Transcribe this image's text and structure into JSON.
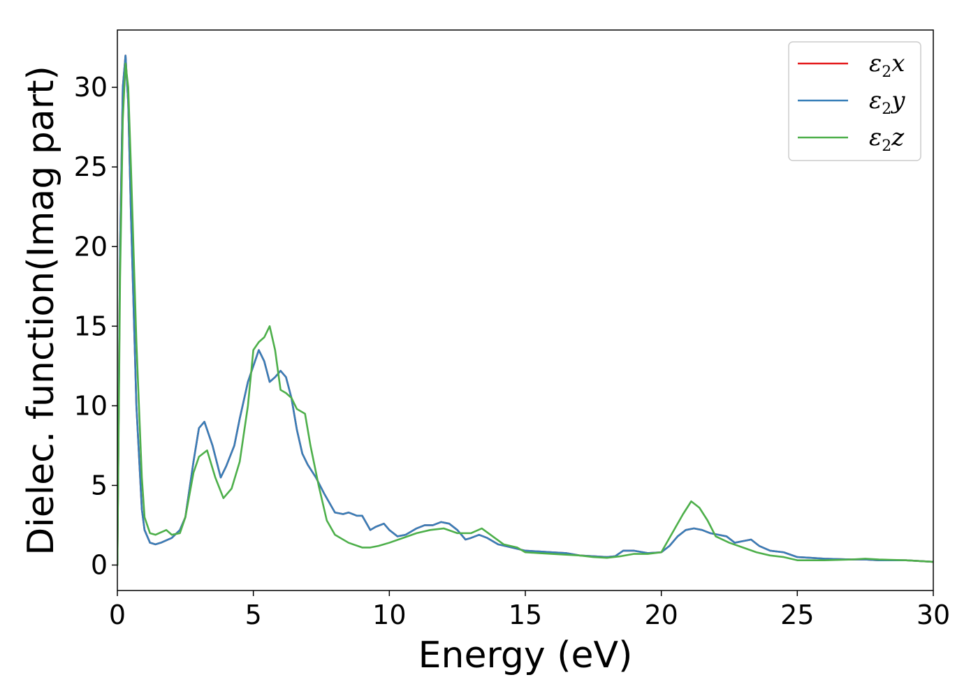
{
  "chart_data": {
    "type": "line",
    "title": "",
    "xlabel": "Energy (eV)",
    "ylabel": "Dielec. function(Imag part)",
    "xlim": [
      0,
      30
    ],
    "ylim": [
      -1.6,
      33.6
    ],
    "xticks": [
      0,
      5,
      10,
      15,
      20,
      25,
      30
    ],
    "yticks": [
      0,
      5,
      10,
      15,
      20,
      25,
      30
    ],
    "grid": false,
    "legend_position": "top-right",
    "colors": {
      "x": "#e41a1c",
      "y": "#377eb8",
      "z": "#4daf4a"
    },
    "legend": [
      {
        "symbol": "ε",
        "sub": "2",
        "axis": "x",
        "color": "#e41a1c"
      },
      {
        "symbol": "ε",
        "sub": "2",
        "axis": "y",
        "color": "#377eb8"
      },
      {
        "symbol": "ε",
        "sub": "2",
        "axis": "z",
        "color": "#4daf4a"
      }
    ],
    "series": [
      {
        "color": "#e41a1c",
        "x": [
          0,
          0.1,
          0.2,
          0.3,
          0.4,
          0.5,
          0.7,
          0.9,
          1.0,
          1.2,
          1.4,
          1.6,
          2.0,
          2.3,
          2.5,
          2.8,
          3.0,
          3.2,
          3.5,
          3.8,
          4.0,
          4.3,
          4.5,
          4.8,
          5.0,
          5.2,
          5.4,
          5.6,
          5.8,
          6.0,
          6.2,
          6.4,
          6.6,
          6.8,
          7.0,
          7.3,
          7.6,
          8.0,
          8.3,
          8.5,
          8.8,
          9.0,
          9.3,
          9.5,
          9.8,
          10.0,
          10.3,
          10.6,
          11.0,
          11.3,
          11.6,
          11.9,
          12.2,
          12.5,
          12.8,
          13.0,
          13.3,
          13.6,
          14.0,
          14.5,
          15.0,
          15.5,
          16.0,
          16.5,
          17.0,
          17.5,
          18.0,
          18.3,
          18.6,
          19.0,
          19.5,
          20.0,
          20.3,
          20.6,
          20.9,
          21.2,
          21.5,
          21.8,
          22.1,
          22.4,
          22.7,
          23.0,
          23.3,
          23.6,
          24.0,
          24.5,
          25.0,
          25.5,
          26.0,
          27.0,
          27.5,
          28.0,
          29.0,
          30.0
        ],
        "y": [
          0,
          20,
          30,
          32,
          29,
          22,
          10,
          3.5,
          2.2,
          1.4,
          1.3,
          1.4,
          1.7,
          2.2,
          3.0,
          6.5,
          8.6,
          9.0,
          7.5,
          5.5,
          6.2,
          7.5,
          9.2,
          11.5,
          12.5,
          13.5,
          12.8,
          11.5,
          11.8,
          12.2,
          11.8,
          10.5,
          8.5,
          7.0,
          6.3,
          5.5,
          4.5,
          3.3,
          3.2,
          3.3,
          3.1,
          3.1,
          2.2,
          2.4,
          2.6,
          2.2,
          1.8,
          1.9,
          2.3,
          2.5,
          2.5,
          2.7,
          2.6,
          2.2,
          1.6,
          1.7,
          1.9,
          1.7,
          1.3,
          1.1,
          0.9,
          0.85,
          0.8,
          0.75,
          0.6,
          0.55,
          0.5,
          0.55,
          0.9,
          0.9,
          0.75,
          0.8,
          1.2,
          1.8,
          2.2,
          2.3,
          2.2,
          2.0,
          1.9,
          1.8,
          1.4,
          1.5,
          1.6,
          1.2,
          0.9,
          0.8,
          0.5,
          0.45,
          0.4,
          0.35,
          0.35,
          0.3,
          0.3,
          0.2
        ]
      },
      {
        "color": "#377eb8",
        "x": [
          0,
          0.1,
          0.2,
          0.3,
          0.4,
          0.5,
          0.7,
          0.9,
          1.0,
          1.2,
          1.4,
          1.6,
          2.0,
          2.3,
          2.5,
          2.8,
          3.0,
          3.2,
          3.5,
          3.8,
          4.0,
          4.3,
          4.5,
          4.8,
          5.0,
          5.2,
          5.4,
          5.6,
          5.8,
          6.0,
          6.2,
          6.4,
          6.6,
          6.8,
          7.0,
          7.3,
          7.6,
          8.0,
          8.3,
          8.5,
          8.8,
          9.0,
          9.3,
          9.5,
          9.8,
          10.0,
          10.3,
          10.6,
          11.0,
          11.3,
          11.6,
          11.9,
          12.2,
          12.5,
          12.8,
          13.0,
          13.3,
          13.6,
          14.0,
          14.5,
          15.0,
          15.5,
          16.0,
          16.5,
          17.0,
          17.5,
          18.0,
          18.3,
          18.6,
          19.0,
          19.5,
          20.0,
          20.3,
          20.6,
          20.9,
          21.2,
          21.5,
          21.8,
          22.1,
          22.4,
          22.7,
          23.0,
          23.3,
          23.6,
          24.0,
          24.5,
          25.0,
          25.5,
          26.0,
          27.0,
          27.5,
          28.0,
          29.0,
          30.0
        ],
        "y": [
          0,
          20,
          30,
          32,
          29,
          22,
          10,
          3.5,
          2.2,
          1.4,
          1.3,
          1.4,
          1.7,
          2.2,
          3.0,
          6.5,
          8.6,
          9.0,
          7.5,
          5.5,
          6.2,
          7.5,
          9.2,
          11.5,
          12.5,
          13.5,
          12.8,
          11.5,
          11.8,
          12.2,
          11.8,
          10.5,
          8.5,
          7.0,
          6.3,
          5.5,
          4.5,
          3.3,
          3.2,
          3.3,
          3.1,
          3.1,
          2.2,
          2.4,
          2.6,
          2.2,
          1.8,
          1.9,
          2.3,
          2.5,
          2.5,
          2.7,
          2.6,
          2.2,
          1.6,
          1.7,
          1.9,
          1.7,
          1.3,
          1.1,
          0.9,
          0.85,
          0.8,
          0.75,
          0.6,
          0.55,
          0.5,
          0.55,
          0.9,
          0.9,
          0.75,
          0.8,
          1.2,
          1.8,
          2.2,
          2.3,
          2.2,
          2.0,
          1.9,
          1.8,
          1.4,
          1.5,
          1.6,
          1.2,
          0.9,
          0.8,
          0.5,
          0.45,
          0.4,
          0.35,
          0.35,
          0.3,
          0.3,
          0.2
        ]
      },
      {
        "color": "#4daf4a",
        "x": [
          0,
          0.1,
          0.2,
          0.3,
          0.4,
          0.5,
          0.7,
          0.9,
          1.0,
          1.2,
          1.4,
          1.8,
          2.0,
          2.3,
          2.5,
          2.8,
          3.0,
          3.3,
          3.6,
          3.9,
          4.2,
          4.5,
          4.8,
          5.0,
          5.2,
          5.4,
          5.6,
          5.8,
          6.0,
          6.2,
          6.4,
          6.6,
          6.9,
          7.1,
          7.4,
          7.7,
          8.0,
          8.5,
          9.0,
          9.3,
          9.6,
          10.0,
          10.5,
          11.0,
          11.5,
          12.0,
          12.5,
          13.0,
          13.4,
          13.8,
          14.2,
          14.7,
          15.0,
          15.5,
          16.0,
          16.5,
          17.0,
          17.5,
          18.0,
          18.5,
          19.0,
          19.5,
          20.0,
          20.5,
          20.8,
          21.1,
          21.4,
          21.7,
          22.0,
          22.5,
          23.0,
          23.5,
          24.0,
          24.5,
          25.0,
          26.0,
          27.0,
          27.5,
          28.0,
          29.0,
          30.0
        ],
        "y": [
          0,
          18,
          28,
          31.5,
          30,
          25,
          14,
          5.5,
          3.0,
          2.0,
          1.9,
          2.2,
          1.9,
          2.0,
          3.0,
          5.8,
          6.8,
          7.2,
          5.5,
          4.2,
          4.8,
          6.5,
          10.0,
          13.5,
          14.0,
          14.3,
          15.0,
          13.5,
          11.0,
          10.8,
          10.5,
          9.8,
          9.5,
          7.5,
          5.0,
          2.8,
          1.9,
          1.4,
          1.1,
          1.1,
          1.2,
          1.4,
          1.7,
          2.0,
          2.2,
          2.3,
          2.0,
          2.0,
          2.3,
          1.8,
          1.3,
          1.1,
          0.8,
          0.75,
          0.7,
          0.65,
          0.6,
          0.5,
          0.45,
          0.55,
          0.7,
          0.7,
          0.8,
          2.3,
          3.2,
          4.0,
          3.6,
          2.8,
          1.8,
          1.4,
          1.1,
          0.8,
          0.6,
          0.5,
          0.3,
          0.3,
          0.35,
          0.4,
          0.35,
          0.3,
          0.2
        ]
      }
    ]
  }
}
